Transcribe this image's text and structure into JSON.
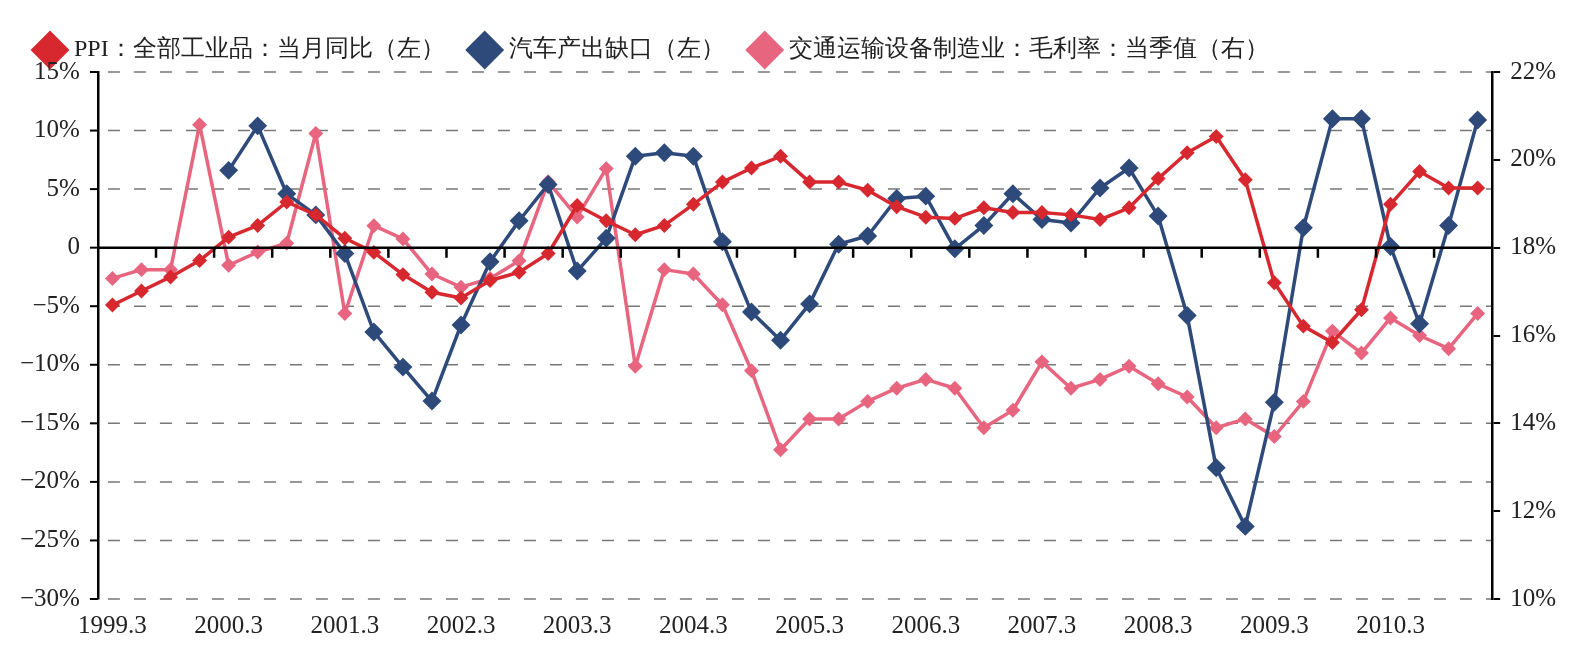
{
  "chart_data": {
    "type": "line",
    "categories": [
      "1999.3",
      null,
      null,
      null,
      "2000.3",
      null,
      null,
      null,
      "2001.3",
      null,
      null,
      null,
      "2002.3",
      null,
      null,
      null,
      "2003.3",
      null,
      null,
      null,
      "2004.3",
      null,
      null,
      null,
      "2005.3",
      null,
      null,
      null,
      "2006.3",
      null,
      null,
      null,
      "2007.3",
      null,
      null,
      null,
      "2008.3",
      null,
      null,
      null,
      "2009.3",
      null,
      null,
      null,
      "2010.3",
      null,
      null,
      null
    ],
    "series": [
      {
        "name": "PPI：全部工业品：当月同比（左）",
        "color": "#d7282f",
        "values": [
          -4.9,
          -3.7,
          -2.5,
          -1.1,
          0.9,
          1.9,
          3.9,
          2.8,
          0.8,
          -0.4,
          -2.3,
          -3.8,
          -4.3,
          -2.8,
          -2.1,
          -0.5,
          3.6,
          2.3,
          1.1,
          1.9,
          3.7,
          5.6,
          6.8,
          7.8,
          5.6,
          5.6,
          4.9,
          3.5,
          2.6,
          2.5,
          3.4,
          3.0,
          3.0,
          2.8,
          2.4,
          3.4,
          5.9,
          8.1,
          9.5,
          5.8,
          -3.0,
          -6.7,
          -8.1,
          -5.3,
          3.7,
          6.5,
          5.1,
          5.1
        ]
      },
      {
        "name": "汽车产出缺口（左）",
        "color": "#2e4a7a",
        "values": [
          null,
          null,
          null,
          null,
          6.6,
          10.4,
          4.6,
          2.8,
          -0.5,
          -7.2,
          -10.2,
          -13.1,
          -6.6,
          -1.2,
          2.3,
          5.4,
          -2.0,
          0.8,
          7.8,
          8.1,
          7.8,
          0.5,
          -5.5,
          -7.9,
          -4.8,
          0.3,
          1.0,
          4.2,
          4.4,
          -0.1,
          1.9,
          4.6,
          2.4,
          2.1,
          5.1,
          6.8,
          2.7,
          -5.8,
          -18.8,
          -23.8,
          -13.2,
          1.7,
          11.0,
          11.0,
          0.1,
          -6.5,
          1.9,
          10.9
        ]
      },
      {
        "name": "交通运输设备制造业：毛利率：当季值（右）",
        "color": "#e8657f",
        "axis": "y2",
        "values": [
          17.3,
          17.5,
          17.5,
          20.8,
          17.6,
          17.9,
          18.1,
          20.6,
          16.5,
          18.5,
          18.2,
          17.4,
          17.1,
          17.3,
          17.7,
          19.5,
          18.7,
          19.8,
          15.3,
          17.5,
          17.4,
          16.7,
          15.2,
          13.4,
          14.1,
          14.1,
          14.5,
          14.8,
          15.0,
          14.8,
          13.9,
          14.3,
          15.4,
          14.8,
          15.0,
          15.3,
          14.9,
          14.6,
          13.9,
          14.1,
          13.7,
          14.5,
          16.1,
          15.6,
          16.4,
          16.0,
          15.7,
          16.5
        ]
      }
    ],
    "ylim": [
      -30,
      15
    ],
    "yticks": [
      {
        "value": -30,
        "label": "−30%"
      },
      {
        "value": -25,
        "label": "−25%"
      },
      {
        "value": -20,
        "label": "−20%"
      },
      {
        "value": -15,
        "label": "−15%"
      },
      {
        "value": -10,
        "label": "−10%"
      },
      {
        "value": -5,
        "label": "−5%"
      },
      0,
      {
        "value": 5,
        "label": "5%"
      },
      {
        "value": 10,
        "label": "10%"
      },
      {
        "value": 15,
        "label": "15%"
      }
    ],
    "y2lim": [
      10,
      22
    ],
    "y2ticks": [
      {
        "value": 10,
        "label": "10%"
      },
      {
        "value": 12,
        "label": "12%"
      },
      {
        "value": 14,
        "label": "14%"
      },
      {
        "value": 16,
        "label": "16%"
      },
      {
        "value": 18,
        "label": "18%"
      },
      {
        "value": 20,
        "label": "20%"
      },
      {
        "value": 22,
        "label": "22%"
      }
    ],
    "ref_lines": [
      {
        "axis": "y",
        "value": 0,
        "color": "#000000",
        "line_style": "solid"
      }
    ],
    "grid": "y",
    "legend": "top left",
    "marker": "diamond",
    "line_style": "solid"
  }
}
